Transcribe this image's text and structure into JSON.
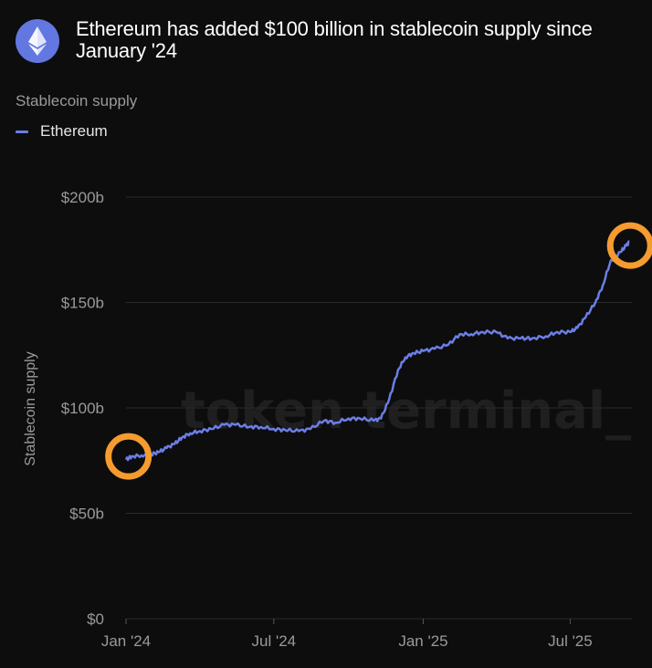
{
  "header": {
    "title": "Ethereum has added $100 billion in stablecoin supply since January '24",
    "logo_icon": "ethereum-logo-icon"
  },
  "subtitle": "Stablecoin supply",
  "legend": {
    "label": "Ethereum",
    "color": "#6b7ee6"
  },
  "watermark": "token terminal_",
  "colors": {
    "background": "#0d0d0d",
    "line": "#6b7ee6",
    "highlight_circle": "#f59b2f",
    "gridline": "#2a2a2a"
  },
  "chart_data": {
    "type": "line",
    "title": "Ethereum has added $100 billion in stablecoin supply since January '24",
    "ylabel": "Stablecoin supply",
    "xlabel": "",
    "ylim": [
      0,
      200
    ],
    "y_unit": "billion USD",
    "y_ticks": [
      0,
      50,
      100,
      150,
      200
    ],
    "y_tick_labels": [
      "$0",
      "$50b",
      "$100b",
      "$150b",
      "$200b"
    ],
    "x_ticks": [
      "2024-01-01",
      "2024-07-01",
      "2025-01-01",
      "2025-07-01"
    ],
    "x_tick_labels": [
      "Jan '24",
      "Jul '24",
      "Jan '25",
      "Jul '25"
    ],
    "x_range": [
      "2024-01-01",
      "2025-09-15"
    ],
    "grid": true,
    "legend_position": "top-left",
    "series": [
      {
        "name": "Ethereum",
        "color": "#6b7ee6",
        "points": [
          [
            "2024-01-01",
            75.5
          ],
          [
            "2024-01-08",
            77
          ],
          [
            "2024-01-20",
            77.5
          ],
          [
            "2024-02-01",
            78
          ],
          [
            "2024-02-10",
            79
          ],
          [
            "2024-02-20",
            81
          ],
          [
            "2024-03-01",
            83
          ],
          [
            "2024-03-10",
            86
          ],
          [
            "2024-03-20",
            88
          ],
          [
            "2024-04-01",
            89
          ],
          [
            "2024-04-15",
            90
          ],
          [
            "2024-05-01",
            92
          ],
          [
            "2024-05-15",
            92
          ],
          [
            "2024-06-01",
            91
          ],
          [
            "2024-06-15",
            91
          ],
          [
            "2024-07-01",
            90
          ],
          [
            "2024-07-15",
            89.5
          ],
          [
            "2024-08-01",
            89
          ],
          [
            "2024-08-15",
            90
          ],
          [
            "2024-09-01",
            94
          ],
          [
            "2024-09-15",
            93
          ],
          [
            "2024-10-01",
            95
          ],
          [
            "2024-10-15",
            95
          ],
          [
            "2024-11-01",
            94
          ],
          [
            "2024-11-10",
            95
          ],
          [
            "2024-11-20",
            104
          ],
          [
            "2024-12-01",
            118
          ],
          [
            "2024-12-10",
            124
          ],
          [
            "2024-12-20",
            126
          ],
          [
            "2025-01-01",
            127
          ],
          [
            "2025-01-15",
            128
          ],
          [
            "2025-02-01",
            130
          ],
          [
            "2025-02-15",
            135
          ],
          [
            "2025-03-01",
            135
          ],
          [
            "2025-03-15",
            136
          ],
          [
            "2025-04-01",
            136
          ],
          [
            "2025-04-15",
            133
          ],
          [
            "2025-05-01",
            133
          ],
          [
            "2025-05-15",
            133
          ],
          [
            "2025-06-01",
            134
          ],
          [
            "2025-06-15",
            136
          ],
          [
            "2025-07-01",
            136
          ],
          [
            "2025-07-10",
            138
          ],
          [
            "2025-07-20",
            143
          ],
          [
            "2025-08-01",
            150
          ],
          [
            "2025-08-10",
            158
          ],
          [
            "2025-08-20",
            170
          ],
          [
            "2025-09-01",
            174
          ],
          [
            "2025-09-08",
            177
          ],
          [
            "2025-09-12",
            179
          ]
        ]
      }
    ],
    "annotations": [
      {
        "type": "circle",
        "x": "2024-01-04",
        "y": 77
      },
      {
        "type": "circle",
        "x": "2025-09-13",
        "y": 177
      }
    ]
  }
}
